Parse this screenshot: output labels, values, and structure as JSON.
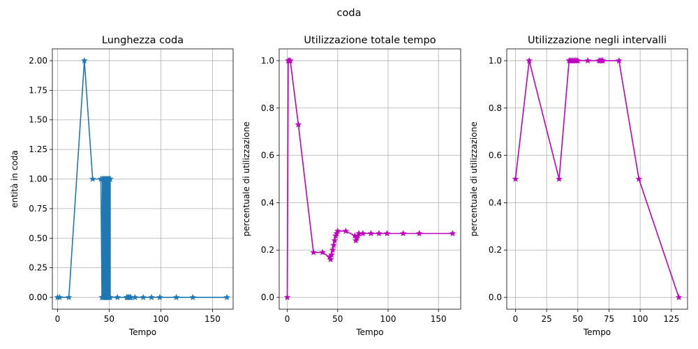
{
  "figure": {
    "suptitle": "coda"
  },
  "chart_data": [
    {
      "type": "line",
      "title": "Lunghezza coda",
      "xlabel": "Tempo",
      "ylabel": "entità in coda",
      "xlim": [
        -5,
        170
      ],
      "ylim": [
        -0.1,
        2.1
      ],
      "xticks": [
        0,
        50,
        100,
        150
      ],
      "yticks": [
        0.0,
        0.25,
        0.5,
        0.75,
        1.0,
        1.25,
        1.5,
        1.75,
        2.0
      ],
      "ytick_format": 2,
      "grid": true,
      "marker": "star",
      "color": "#1f77b4",
      "series": [
        {
          "x": [
            0,
            2,
            11,
            26,
            34,
            42,
            43,
            43.5,
            44,
            44.5,
            45,
            45.5,
            46,
            46.5,
            47,
            47.5,
            48,
            48.5,
            49,
            49.5,
            50,
            50.5,
            51,
            51,
            47,
            58,
            67,
            68,
            69,
            70,
            71,
            75,
            83,
            91,
            99,
            115,
            131,
            164
          ],
          "y": [
            0,
            0,
            0,
            2,
            1,
            1,
            0,
            1,
            0,
            1,
            0,
            1,
            0,
            1,
            0,
            1,
            0,
            1,
            0,
            1,
            0,
            1,
            0,
            1,
            0,
            0,
            0,
            0,
            0,
            0,
            0,
            0,
            0,
            0,
            0,
            0,
            0,
            0
          ]
        }
      ]
    },
    {
      "type": "line",
      "title": "Utilizzazione totale tempo",
      "xlabel": "Tempo",
      "ylabel": "percentuale di utilizzazione",
      "xlim": [
        -8,
        172
      ],
      "ylim": [
        -0.05,
        1.05
      ],
      "xticks": [
        0,
        50,
        100,
        150
      ],
      "yticks": [
        0.0,
        0.2,
        0.4,
        0.6,
        0.8,
        1.0
      ],
      "ytick_format": 1,
      "grid": true,
      "marker": "star",
      "color": "#bf00bf",
      "series": [
        {
          "x": [
            0,
            1,
            2,
            3,
            11,
            26,
            35,
            42,
            43,
            44,
            45,
            46,
            47,
            48,
            49,
            50,
            58,
            67,
            68,
            69,
            70,
            71,
            75,
            83,
            91,
            99,
            115,
            131,
            164
          ],
          "y": [
            0,
            1.0,
            1.0,
            1.0,
            0.73,
            0.19,
            0.19,
            0.17,
            0.16,
            0.18,
            0.2,
            0.22,
            0.24,
            0.26,
            0.27,
            0.28,
            0.28,
            0.26,
            0.24,
            0.25,
            0.26,
            0.27,
            0.27,
            0.27,
            0.27,
            0.27,
            0.27,
            0.27,
            0.27
          ]
        }
      ]
    },
    {
      "type": "line",
      "title": "Utilizzazione negli intervalli",
      "xlabel": "Tempo",
      "ylabel": "percentuale di utilizzazione",
      "xlim": [
        -7,
        138
      ],
      "ylim": [
        -0.05,
        1.05
      ],
      "xticks": [
        0,
        25,
        50,
        75,
        100,
        125
      ],
      "yticks": [
        0.0,
        0.2,
        0.4,
        0.6,
        0.8,
        1.0
      ],
      "ytick_format": 1,
      "grid": true,
      "marker": "star",
      "color": "#bf00bf",
      "series": [
        {
          "x": [
            0,
            11,
            35,
            43,
            44,
            45,
            46,
            47,
            48,
            49,
            50,
            58,
            67,
            68,
            69,
            70,
            83,
            99,
            131
          ],
          "y": [
            0.5,
            1.0,
            0.5,
            1.0,
            1.0,
            1.0,
            1.0,
            1.0,
            1.0,
            1.0,
            1.0,
            1.0,
            1.0,
            1.0,
            1.0,
            1.0,
            1.0,
            0.5,
            0.0
          ]
        }
      ]
    }
  ]
}
